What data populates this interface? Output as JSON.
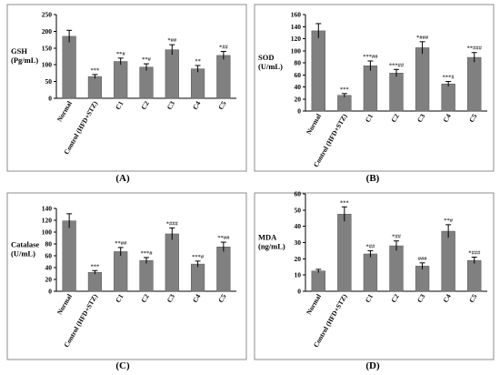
{
  "colors": {
    "bar": "#808080",
    "frame": "#8c8c8c"
  },
  "chart_data": [
    {
      "type": "bar",
      "panel": "(A)",
      "ylabel_lines": [
        "GSH",
        "(Pg/mL)"
      ],
      "ylim": [
        0,
        250
      ],
      "yticks": [
        "0",
        "50",
        "100",
        "150",
        "200",
        "250"
      ],
      "ytick_values": [
        0,
        50,
        100,
        150,
        200,
        250
      ],
      "categories": [
        "Normal",
        "Control (HFD+STZ)",
        "C1",
        "C2",
        "C3",
        "C4",
        "C5"
      ],
      "values": [
        185,
        65,
        110,
        93,
        145,
        88,
        128
      ],
      "errors": [
        18,
        6,
        10,
        10,
        15,
        10,
        12
      ],
      "annotations": [
        "",
        "***",
        "**#",
        "**#",
        "*##",
        "**",
        "*##"
      ]
    },
    {
      "type": "bar",
      "panel": "(B)",
      "ylabel_lines": [
        "SOD",
        "(U/mL)"
      ],
      "ylim": [
        0,
        160
      ],
      "yticks": [
        "0",
        "20",
        "40",
        "60",
        "80",
        "100",
        "120",
        "140",
        "160"
      ],
      "ytick_values": [
        0,
        20,
        40,
        60,
        80,
        100,
        120,
        140,
        160
      ],
      "categories": [
        "Normal",
        "Control (HFD+STZ)",
        "C1",
        "C2",
        "C3",
        "C4",
        "C5"
      ],
      "values": [
        133,
        26,
        75,
        63,
        105,
        45,
        89
      ],
      "errors": [
        12,
        3,
        8,
        6,
        10,
        4,
        8
      ],
      "annotations": [
        "",
        "***",
        "***##",
        "***##",
        "*###",
        "***#",
        "**###"
      ]
    },
    {
      "type": "bar",
      "panel": "(C)",
      "ylabel_lines": [
        "Catalase",
        "(U/mL)"
      ],
      "ylim": [
        0,
        140
      ],
      "yticks": [
        "0",
        "20",
        "40",
        "60",
        "80",
        "100",
        "120",
        "140"
      ],
      "ytick_values": [
        0,
        20,
        40,
        60,
        80,
        100,
        120,
        140
      ],
      "categories": [
        "Normal",
        "Control (HFD+STZ)",
        "C1",
        "C2",
        "C3",
        "C4",
        "C5"
      ],
      "values": [
        119,
        32,
        67,
        52,
        97,
        46,
        75
      ],
      "errors": [
        12,
        3,
        7,
        5,
        10,
        5,
        8
      ],
      "annotations": [
        "",
        "***",
        "**##",
        "***#",
        "*###",
        "***#",
        "**##"
      ]
    },
    {
      "type": "bar",
      "panel": "(D)",
      "ylabel_lines": [
        "MDA",
        "(ng/mL)"
      ],
      "ylim": [
        0,
        60
      ],
      "yticks": [
        "0",
        "10",
        "20",
        "30",
        "40",
        "50",
        "60"
      ],
      "ytick_values": [
        0,
        10,
        20,
        30,
        40,
        50,
        60
      ],
      "categories": [
        "Normal",
        "Control (HFD+STZ)",
        "C1",
        "C2",
        "C3",
        "C4",
        "C5"
      ],
      "values": [
        12.5,
        47.5,
        23,
        28,
        15.5,
        37,
        19
      ],
      "errors": [
        1,
        4.5,
        2,
        3,
        2,
        4,
        2
      ],
      "annotations": [
        "",
        "***",
        "*##",
        "*##",
        "###",
        "**#",
        "*###"
      ]
    }
  ]
}
